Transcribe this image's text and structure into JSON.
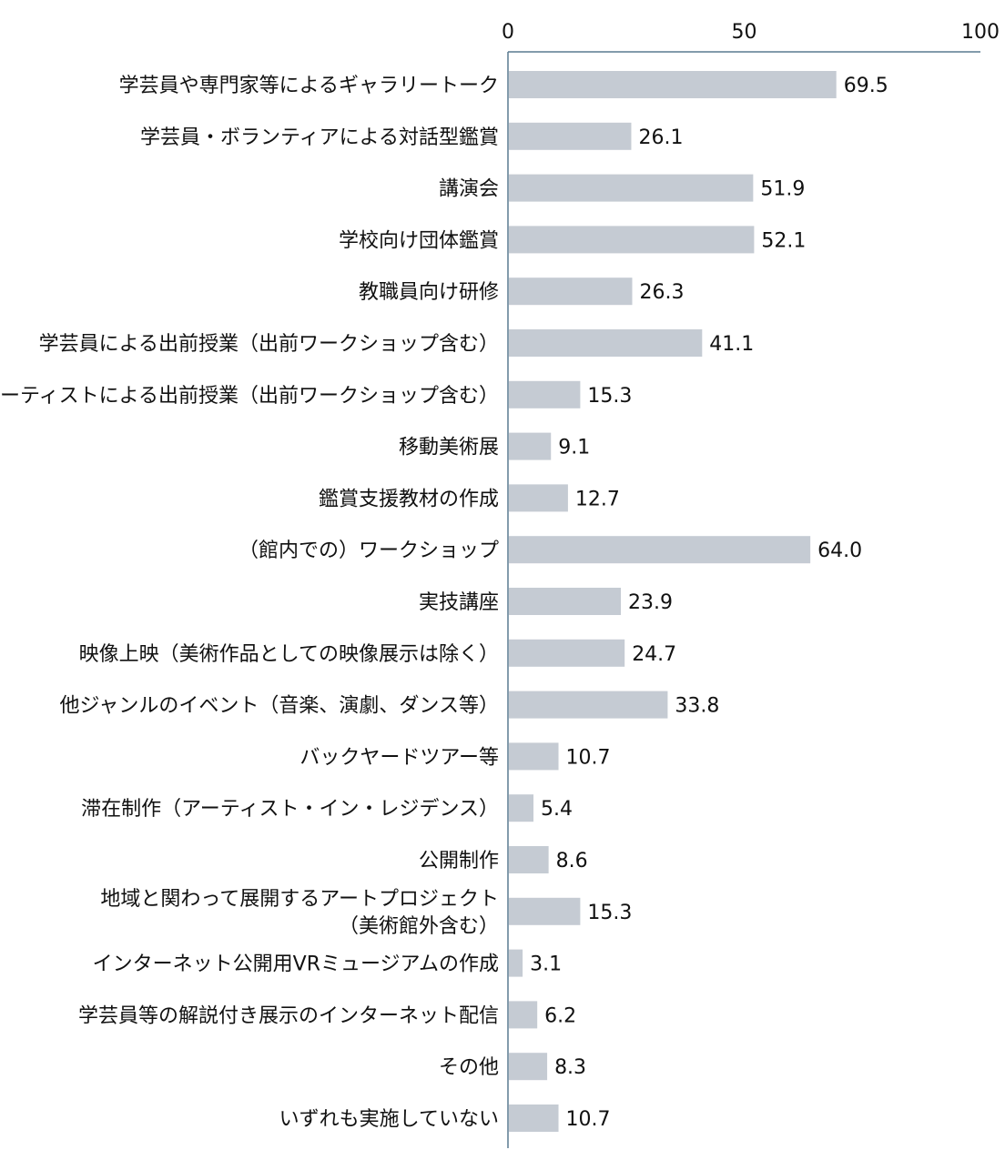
{
  "chart_data": {
    "type": "bar",
    "orientation": "horizontal",
    "title": "",
    "xlabel": "",
    "ylabel": "",
    "xlim": [
      0,
      100
    ],
    "xticks": [
      0,
      50,
      100
    ],
    "tick_labels": [
      "0",
      "50",
      "100"
    ],
    "axis_position": "top",
    "grid": false,
    "bar_color": "#c5cbd3",
    "axis_color": "#5a7a90",
    "categories": [
      "学芸員や専門家等によるギャラリートーク",
      "学芸員・ボランティアによる対話型鑑賞",
      "講演会",
      "学校向け団体鑑賞",
      "教職員向け研修",
      "学芸員による出前授業（出前ワークショップ含む）",
      "アーティストによる出前授業（出前ワークショップ含む）",
      "移動美術展",
      "鑑賞支援教材の作成",
      "（館内での）ワークショップ",
      "実技講座",
      "映像上映（美術作品としての映像展示は除く）",
      "他ジャンルのイベント（音楽、演劇、ダンス等）",
      "バックヤードツアー等",
      "滞在制作（アーティスト・イン・レジデンス）",
      "公開制作",
      "地域と関わって展開するアートプロジェクト\n（美術館外含む）",
      "インターネット公開用VRミュージアムの作成",
      "学芸員等の解説付き展示のインターネット配信",
      "その他",
      "いずれも実施していない"
    ],
    "values": [
      69.5,
      26.1,
      51.9,
      52.1,
      26.3,
      41.1,
      15.3,
      9.1,
      12.7,
      64.0,
      23.9,
      24.7,
      33.8,
      10.7,
      5.4,
      8.6,
      15.3,
      3.1,
      6.2,
      8.3,
      10.7
    ],
    "value_labels": [
      "69.5",
      "26.1",
      "51.9",
      "52.1",
      "26.3",
      "41.1",
      "15.3",
      "9.1",
      "12.7",
      "64.0",
      "23.9",
      "24.7",
      "33.8",
      "10.7",
      "5.4",
      "8.6",
      "15.3",
      "3.1",
      "6.2",
      "8.3",
      "10.7"
    ]
  }
}
